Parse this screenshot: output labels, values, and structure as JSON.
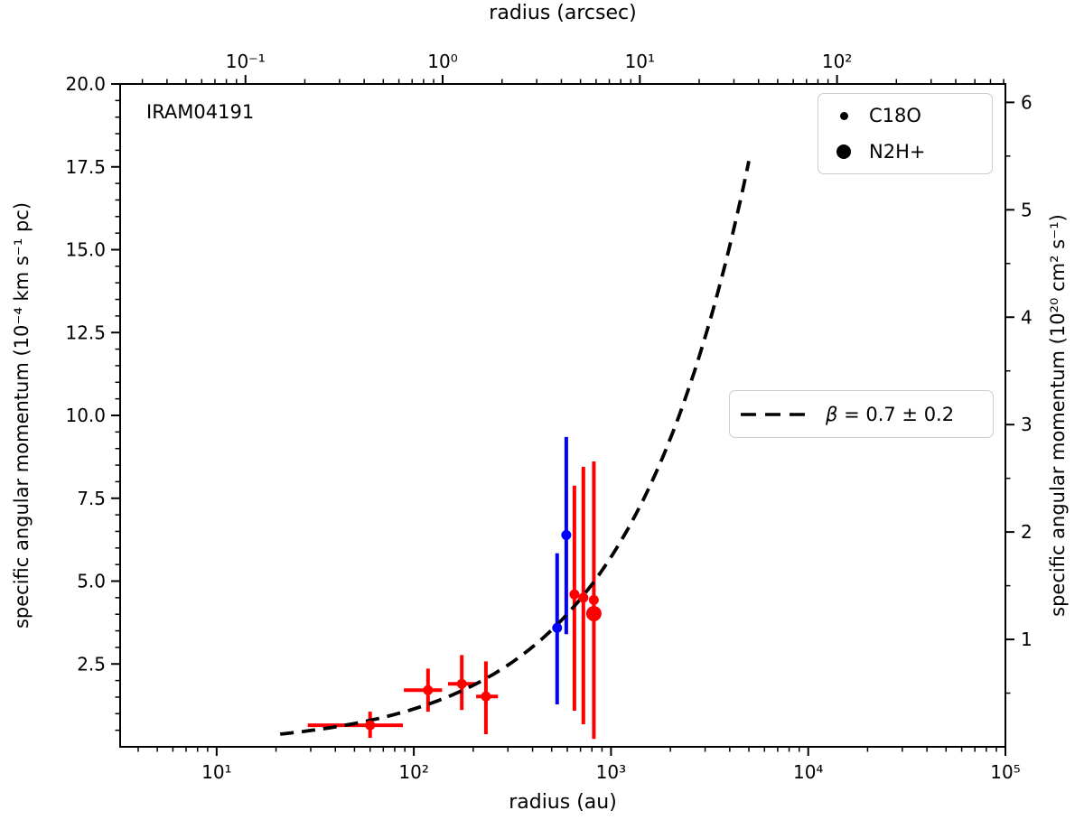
{
  "chart_data": {
    "type": "scatter",
    "annotation": "IRAM04191",
    "x_axis": {
      "label": "radius (au)",
      "scale": "log",
      "range_au": [
        3.24,
        100000
      ],
      "major_ticks_au": [
        10,
        100,
        1000,
        10000,
        100000
      ],
      "major_tick_labels": [
        "10¹",
        "10²",
        "10³",
        "10⁴",
        "10⁵"
      ],
      "top": {
        "label": "radius (arcsec)",
        "scale": "log",
        "major_ticks_arcsec": [
          0.1,
          1,
          10,
          100
        ],
        "major_tick_labels": [
          "10⁻¹",
          "10⁰",
          "10¹",
          "10²"
        ],
        "au_per_arcsec": 140
      }
    },
    "y_axis": {
      "left": {
        "label": "specific angular momentum (10⁻⁴ km s⁻¹ pc)",
        "range": [
          0,
          20
        ],
        "major_ticks": [
          2.5,
          5,
          7.5,
          10,
          12.5,
          15,
          17.5,
          20
        ],
        "major_tick_labels": [
          "2.5",
          "5.0",
          "7.5",
          "10.0",
          "12.5",
          "15.0",
          "17.5",
          "20.0"
        ],
        "minor_step": 0.5
      },
      "right": {
        "label": "specific angular momentum (10²⁰ cm² s⁻¹)",
        "major_ticks": [
          1,
          2,
          3,
          4,
          5,
          6
        ],
        "major_tick_labels": [
          "1",
          "2",
          "3",
          "4",
          "5",
          "6"
        ],
        "left_units_per_right_unit": 3.2408,
        "minor_step": 0.5
      }
    },
    "series": [
      {
        "name": "C18O",
        "color": "#ff0000",
        "marker": "dot-small",
        "marker_radius_px": 5.5,
        "points": [
          {
            "r_au": 60,
            "r_err_au": [
              29,
              88
            ],
            "j": 0.65,
            "j_err": [
              0.27,
              1.06
            ]
          },
          {
            "r_au": 118,
            "r_err_au": [
              89,
              139
            ],
            "j": 1.71,
            "j_err": [
              1.06,
              2.36
            ]
          },
          {
            "r_au": 175,
            "r_err_au": [
              149,
              205
            ],
            "j": 1.9,
            "j_err": [
              1.11,
              2.77
            ]
          },
          {
            "r_au": 232,
            "r_err_au": [
              207,
              267
            ],
            "j": 1.52,
            "j_err": [
              0.38,
              2.58
            ]
          },
          {
            "r_au": 652,
            "j": 4.6,
            "j_err": [
              1.09,
              7.88
            ]
          },
          {
            "r_au": 724,
            "j": 4.5,
            "j_err": [
              0.68,
              8.45
            ]
          },
          {
            "r_au": 818,
            "j": 4.43,
            "j_err": [
              0.24,
              8.61
            ]
          }
        ]
      },
      {
        "name": "C18O",
        "color": "#0000ff",
        "marker": "dot-small",
        "marker_radius_px": 5.5,
        "points": [
          {
            "r_au": 533,
            "j": 3.59,
            "j_err": [
              1.28,
              5.84
            ]
          },
          {
            "r_au": 593,
            "j": 6.39,
            "j_err": [
              3.4,
              9.35
            ]
          }
        ]
      },
      {
        "name": "N2H+",
        "color": "#ff0000",
        "marker": "dot-large",
        "marker_radius_px": 8.5,
        "points": [
          {
            "r_au": 818,
            "j": 4.02
          }
        ]
      }
    ],
    "fit": {
      "symbol": "β",
      "text": " = 0.7 ± 0.2",
      "beta": 0.7,
      "beta_err": 0.2,
      "amplitude": 0.0455,
      "r_range_au": [
        21,
        5000
      ],
      "color": "#000000",
      "style": "dashed"
    },
    "legend": {
      "items": [
        {
          "label": "C18O",
          "marker": "dot-small"
        },
        {
          "label": "N2H+",
          "marker": "dot-large"
        }
      ]
    }
  }
}
